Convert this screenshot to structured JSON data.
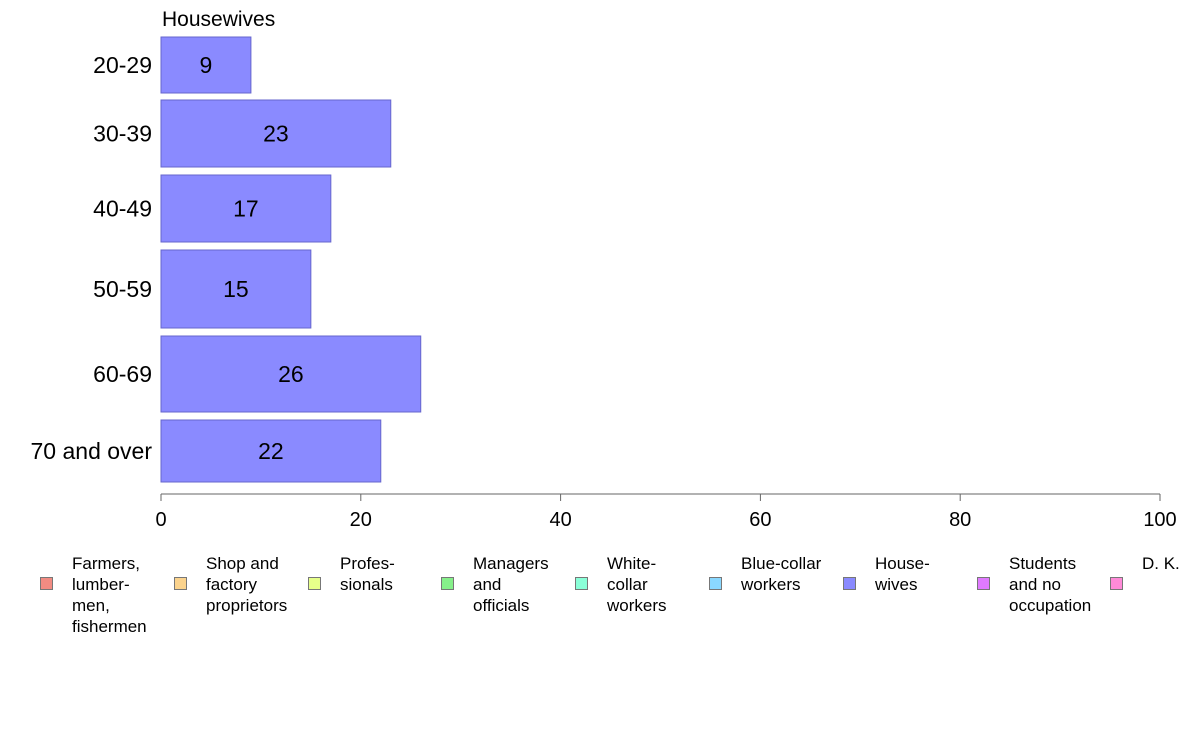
{
  "chart_data": {
    "type": "bar",
    "orientation": "horizontal",
    "title": "Housewives",
    "categories": [
      "20-29",
      "30-39",
      "40-49",
      "50-59",
      "60-69",
      "70 and over"
    ],
    "values": [
      9,
      23,
      17,
      15,
      26,
      22
    ],
    "value_labels": [
      "9",
      "23",
      "17",
      "15",
      "26",
      "22"
    ],
    "xlim": [
      0,
      100
    ],
    "x_ticks": [
      0,
      20,
      40,
      60,
      80,
      100
    ],
    "bar_color": "#8a8aff",
    "bar_border_color": "#6666cc",
    "grid": false,
    "legend_position": "bottom",
    "legend": [
      {
        "label": "Farmers,\nlumber-\nmen,\nfishermen",
        "color": "#f28b82"
      },
      {
        "label": "Shop and\nfactory\nproprietors",
        "color": "#fbd38d"
      },
      {
        "label": "Profes-\nsionals",
        "color": "#e6ff8a"
      },
      {
        "label": "Managers\nand\nofficials",
        "color": "#86f08a"
      },
      {
        "label": "White-\ncollar\nworkers",
        "color": "#8affd8"
      },
      {
        "label": "Blue-collar\nworkers",
        "color": "#8ad8ff"
      },
      {
        "label": "House-\nwives",
        "color": "#8a8aff"
      },
      {
        "label": "Students\nand no\noccupation",
        "color": "#e07aff"
      },
      {
        "label": "D. K.",
        "color": "#ff8ad8"
      }
    ]
  }
}
